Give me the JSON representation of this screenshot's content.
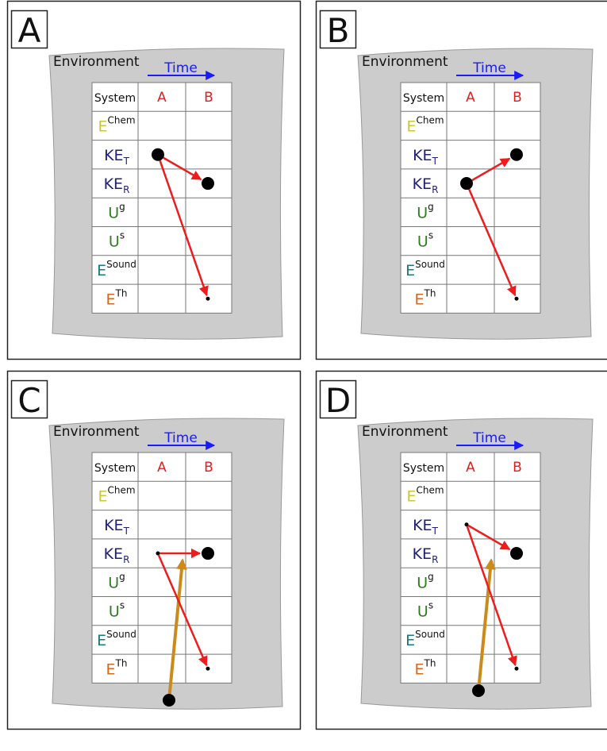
{
  "panels": [
    {
      "letter": "A",
      "environment_label": "Environment",
      "time_label": "Time",
      "header": {
        "system": "System",
        "col_a": "A",
        "col_b": "B"
      },
      "rows": [
        {
          "base": "E",
          "sup": "Chem",
          "sub": "",
          "color": "#c8c832"
        },
        {
          "base": "KE",
          "sup": "",
          "sub": "T",
          "color": "#1f1f7a"
        },
        {
          "base": "KE",
          "sup": "",
          "sub": "R",
          "color": "#1f1f7a"
        },
        {
          "base": "U",
          "sup": "g",
          "sub": "",
          "color": "#2e7d1f"
        },
        {
          "base": "U",
          "sup": "s",
          "sub": "",
          "color": "#2e7d1f"
        },
        {
          "base": "E",
          "sup": "Sound",
          "sub": "",
          "color": "#1a7a7a"
        },
        {
          "base": "E",
          "sup": "Th",
          "sub": "",
          "color": "#d2691e"
        }
      ],
      "source": {
        "col": "A",
        "row": "KE_T",
        "size": "large"
      },
      "targets": [
        {
          "col": "B",
          "row": "KE_R",
          "size": "large"
        },
        {
          "col": "B",
          "row": "E_Th",
          "size": "small"
        }
      ],
      "env_input": null
    },
    {
      "letter": "B",
      "environment_label": "Environment",
      "time_label": "Time",
      "header": {
        "system": "System",
        "col_a": "A",
        "col_b": "B"
      },
      "rows": [
        {
          "base": "E",
          "sup": "Chem",
          "sub": "",
          "color": "#c8c832"
        },
        {
          "base": "KE",
          "sup": "",
          "sub": "T",
          "color": "#1f1f7a"
        },
        {
          "base": "KE",
          "sup": "",
          "sub": "R",
          "color": "#1f1f7a"
        },
        {
          "base": "U",
          "sup": "g",
          "sub": "",
          "color": "#2e7d1f"
        },
        {
          "base": "U",
          "sup": "s",
          "sub": "",
          "color": "#2e7d1f"
        },
        {
          "base": "E",
          "sup": "Sound",
          "sub": "",
          "color": "#1a7a7a"
        },
        {
          "base": "E",
          "sup": "Th",
          "sub": "",
          "color": "#d2691e"
        }
      ],
      "source": {
        "col": "A",
        "row": "KE_R",
        "size": "large"
      },
      "targets": [
        {
          "col": "B",
          "row": "KE_T",
          "size": "large"
        },
        {
          "col": "B",
          "row": "E_Th",
          "size": "small"
        }
      ],
      "env_input": null
    },
    {
      "letter": "C",
      "environment_label": "Environment",
      "time_label": "Time",
      "header": {
        "system": "System",
        "col_a": "A",
        "col_b": "B"
      },
      "rows": [
        {
          "base": "E",
          "sup": "Chem",
          "sub": "",
          "color": "#c8c832"
        },
        {
          "base": "KE",
          "sup": "",
          "sub": "T",
          "color": "#1f1f7a"
        },
        {
          "base": "KE",
          "sup": "",
          "sub": "R",
          "color": "#1f1f7a"
        },
        {
          "base": "U",
          "sup": "g",
          "sub": "",
          "color": "#2e7d1f"
        },
        {
          "base": "U",
          "sup": "s",
          "sub": "",
          "color": "#2e7d1f"
        },
        {
          "base": "E",
          "sup": "Sound",
          "sub": "",
          "color": "#1a7a7a"
        },
        {
          "base": "E",
          "sup": "Th",
          "sub": "",
          "color": "#d2691e"
        }
      ],
      "source": {
        "col": "A",
        "row": "KE_R",
        "size": "small"
      },
      "targets": [
        {
          "col": "B",
          "row": "KE_R",
          "size": "large"
        },
        {
          "col": "B",
          "row": "E_Th",
          "size": "small"
        }
      ],
      "env_input": {
        "to": "B-KE_R"
      }
    },
    {
      "letter": "D",
      "environment_label": "Environment",
      "time_label": "Time",
      "header": {
        "system": "System",
        "col_a": "A",
        "col_b": "B"
      },
      "rows": [
        {
          "base": "E",
          "sup": "Chem",
          "sub": "",
          "color": "#c8c832"
        },
        {
          "base": "KE",
          "sup": "",
          "sub": "T",
          "color": "#1f1f7a"
        },
        {
          "base": "KE",
          "sup": "",
          "sub": "R",
          "color": "#1f1f7a"
        },
        {
          "base": "U",
          "sup": "g",
          "sub": "",
          "color": "#2e7d1f"
        },
        {
          "base": "U",
          "sup": "s",
          "sub": "",
          "color": "#2e7d1f"
        },
        {
          "base": "E",
          "sup": "Sound",
          "sub": "",
          "color": "#1a7a7a"
        },
        {
          "base": "E",
          "sup": "Th",
          "sub": "",
          "color": "#d2691e"
        }
      ],
      "source": {
        "col": "A",
        "row": "KE_T",
        "size": "small"
      },
      "targets": [
        {
          "col": "B",
          "row": "KE_R",
          "size": "large"
        },
        {
          "col": "B",
          "row": "E_Th",
          "size": "small"
        }
      ],
      "env_input": {
        "to": "B-KE_R"
      }
    }
  ],
  "colors": {
    "environment_fill": "#cccccc",
    "time_arrow": "#1a1aff",
    "column_label": "#e02020",
    "transfer_arrow": "#ee1c1c",
    "environment_arrow": "#cc8a1a",
    "dot": "#000000"
  }
}
